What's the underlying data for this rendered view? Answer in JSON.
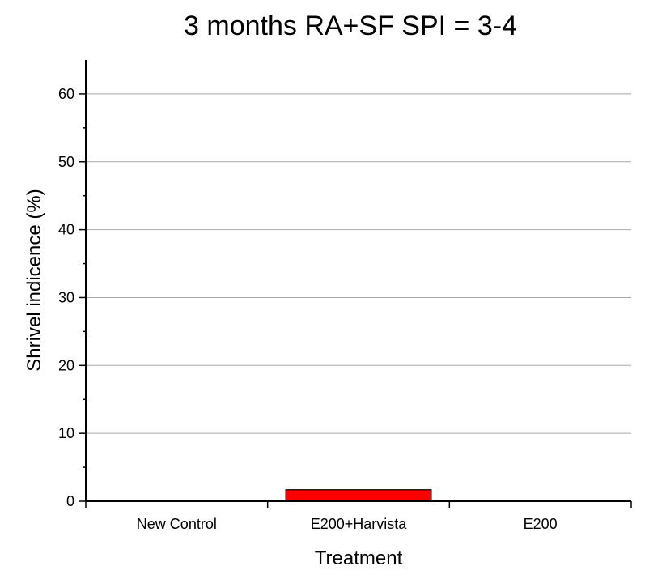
{
  "chart_data": {
    "type": "bar",
    "title": "3 months RA+SF SPI = 3-4",
    "xlabel": "Treatment",
    "ylabel": "Shrivel indicence (%)",
    "categories": [
      "New Control",
      "E200+Harvista",
      "E200"
    ],
    "values": [
      0,
      1.7,
      0
    ],
    "ylim": [
      0,
      65
    ],
    "yticks": [
      0,
      10,
      20,
      30,
      40,
      50,
      60
    ],
    "grid": true,
    "bar_color": "#ff0000"
  }
}
